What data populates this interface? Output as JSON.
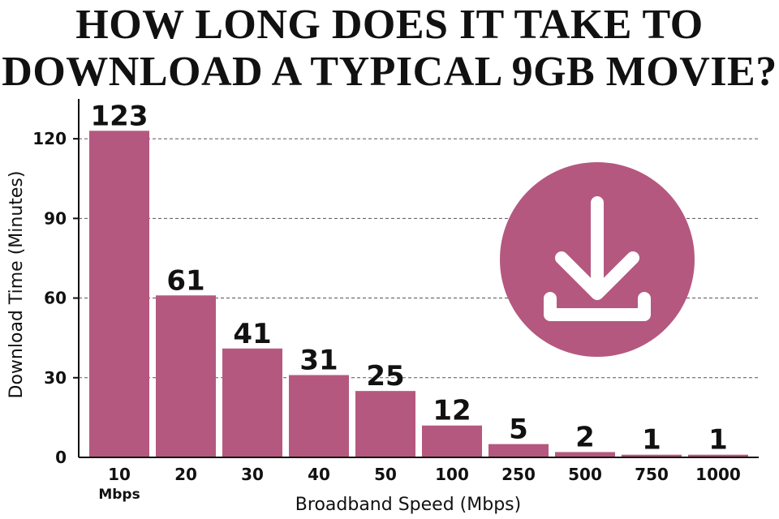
{
  "title_lines": [
    "HOW LONG DOES IT TAKE TO",
    "DOWNLOAD A TYPICAL 9GB MOVIE?"
  ],
  "icons": {
    "badge": "download-icon"
  },
  "colors": {
    "bar": "#b5587f",
    "badge": "#b5587f",
    "badge_symbol": "#ffffff",
    "grid": "#555555",
    "text": "#111111"
  },
  "chart_data": {
    "type": "bar",
    "title": "HOW LONG DOES IT TAKE TO DOWNLOAD A TYPICAL 9GB MOVIE?",
    "categories": [
      "10",
      "20",
      "30",
      "40",
      "50",
      "100",
      "250",
      "500",
      "750",
      "1000"
    ],
    "category_sublabel": {
      "index": 0,
      "text": "Mbps"
    },
    "values": [
      123,
      61,
      41,
      31,
      25,
      12,
      5,
      2,
      1,
      1
    ],
    "data_labels": [
      "123",
      "61",
      "41",
      "31",
      "25",
      "12",
      "5",
      "2",
      "1",
      "1"
    ],
    "xlabel": "Broadband Speed (Mbps)",
    "ylabel": "Download Time (Minutes)",
    "ylim": [
      0,
      135
    ],
    "yticks": [
      0,
      30,
      60,
      90,
      120
    ],
    "grid": "horizontal dashed",
    "legend": "none"
  }
}
